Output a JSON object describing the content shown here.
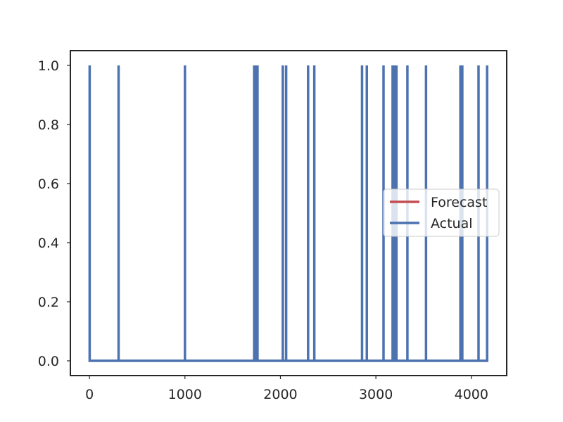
{
  "chart_data": {
    "type": "line",
    "title": "",
    "xlabel": "",
    "ylabel": "",
    "xlim": [
      -200,
      4370
    ],
    "ylim": [
      -0.05,
      1.05
    ],
    "grid": false,
    "legend_position": "center-right",
    "x_ticks": [
      {
        "value": 0,
        "label": "0"
      },
      {
        "value": 1000,
        "label": "1000"
      },
      {
        "value": 2000,
        "label": "2000"
      },
      {
        "value": 3000,
        "label": "3000"
      },
      {
        "value": 4000,
        "label": "4000"
      }
    ],
    "y_ticks": [
      {
        "value": 0.0,
        "label": "0.0"
      },
      {
        "value": 0.2,
        "label": "0.2"
      },
      {
        "value": 0.4,
        "label": "0.4"
      },
      {
        "value": 0.6,
        "label": "0.6"
      },
      {
        "value": 0.8,
        "label": "0.8"
      },
      {
        "value": 1.0,
        "label": "1.0"
      }
    ],
    "series": [
      {
        "name": "Forecast",
        "color": "#c44e52",
        "x": [],
        "y": []
      },
      {
        "name": "Actual",
        "color": "#4c72b0",
        "x_range": [
          0,
          4170
        ],
        "baseline": 0,
        "spike_value": 1,
        "spike_x": [
          2,
          305,
          1000,
          1725,
          1745,
          1760,
          2025,
          2060,
          2290,
          2355,
          2855,
          2905,
          3080,
          3175,
          3185,
          3200,
          3215,
          3330,
          3525,
          3885,
          3895,
          3905,
          4075,
          4165
        ]
      }
    ]
  }
}
